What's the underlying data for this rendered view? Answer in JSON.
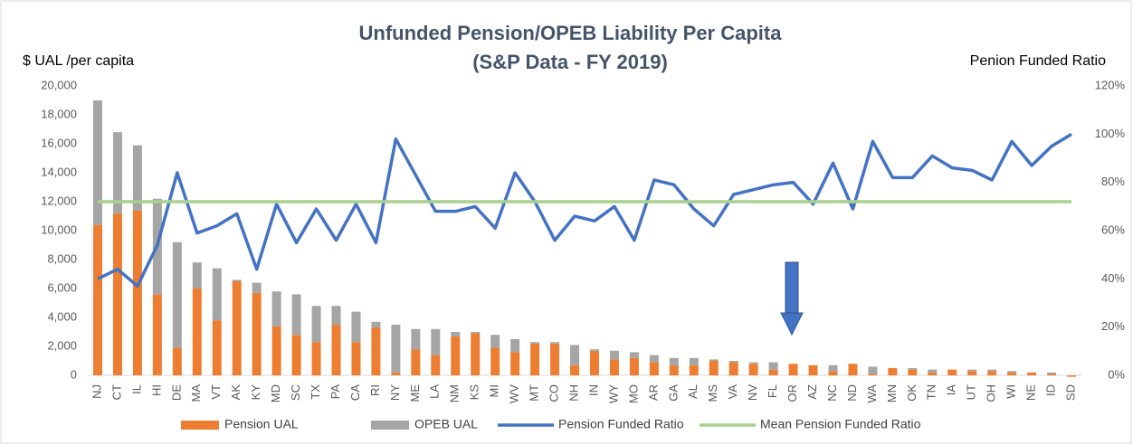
{
  "chart_data": {
    "type": "bar",
    "stacked": true,
    "title": [
      "Unfunded Pension/OPEB Liability Per Capita",
      "(S&P Data - FY 2019)"
    ],
    "y_label": "$ UAL /per capita",
    "y2_label": "Penion Funded Ratio",
    "categories": [
      "NJ",
      "CT",
      "IL",
      "HI",
      "DE",
      "MA",
      "VT",
      "AK",
      "KY",
      "MD",
      "SC",
      "TX",
      "PA",
      "CA",
      "RI",
      "NY",
      "ME",
      "LA",
      "NM",
      "KS",
      "MI",
      "WV",
      "MT",
      "CO",
      "NH",
      "IN",
      "WY",
      "MO",
      "AR",
      "GA",
      "AL",
      "MS",
      "VA",
      "NV",
      "FL",
      "OR",
      "AZ",
      "NC",
      "ND",
      "WA",
      "MN",
      "OK",
      "TN",
      "IA",
      "UT",
      "OH",
      "WI",
      "NE",
      "ID",
      "SD"
    ],
    "series": [
      {
        "name": "Pension UAL",
        "type": "bar",
        "color": "#ed7d31",
        "values": [
          10400,
          11200,
          11400,
          5600,
          1900,
          6000,
          3800,
          6500,
          5700,
          3400,
          2800,
          2300,
          3500,
          2300,
          3300,
          200,
          1800,
          1400,
          2700,
          2900,
          1900,
          1600,
          2200,
          2200,
          700,
          1700,
          1100,
          1200,
          900,
          700,
          700,
          1000,
          900,
          800,
          400,
          800,
          700,
          300,
          800,
          100,
          500,
          400,
          200,
          400,
          300,
          300,
          200,
          200,
          100,
          -100
        ]
      },
      {
        "name": "OPEB UAL",
        "type": "bar",
        "color": "#a5a5a5",
        "values": [
          8600,
          5600,
          4500,
          6600,
          7300,
          1800,
          3600,
          100,
          700,
          2400,
          2800,
          2500,
          1300,
          2100,
          400,
          3300,
          1400,
          1800,
          300,
          100,
          900,
          900,
          100,
          100,
          1400,
          100,
          600,
          400,
          500,
          500,
          500,
          100,
          100,
          100,
          500,
          0,
          0,
          400,
          0,
          500,
          0,
          100,
          200,
          0,
          100,
          100,
          100,
          0,
          100,
          0
        ]
      },
      {
        "name": "Pension Funded Ratio",
        "type": "line",
        "axis": "y2",
        "color": "#4472c4",
        "values": [
          40,
          44,
          37,
          54,
          84,
          59,
          62,
          67,
          44,
          71,
          55,
          69,
          56,
          71,
          55,
          98,
          83,
          68,
          68,
          70,
          61,
          84,
          72,
          56,
          66,
          64,
          70,
          56,
          81,
          79,
          69,
          62,
          75,
          77,
          79,
          80,
          71,
          88,
          69,
          97,
          82,
          82,
          91,
          86,
          85,
          81,
          97,
          87,
          95,
          100
        ]
      },
      {
        "name": "Mean Pension Funded Ratio",
        "type": "line",
        "axis": "y2",
        "color": "#a9d18e",
        "values": [
          72,
          72,
          72,
          72,
          72,
          72,
          72,
          72,
          72,
          72,
          72,
          72,
          72,
          72,
          72,
          72,
          72,
          72,
          72,
          72,
          72,
          72,
          72,
          72,
          72,
          72,
          72,
          72,
          72,
          72,
          72,
          72,
          72,
          72,
          72,
          72,
          72,
          72,
          72,
          72,
          72,
          72,
          72,
          72,
          72,
          72,
          72,
          72,
          72,
          72
        ]
      }
    ],
    "ylim": [
      0,
      20000
    ],
    "yticks": [
      0,
      {
        "value": 2000,
        "label": "2,000"
      },
      {
        "value": 4000,
        "label": "4,000"
      },
      {
        "value": 6000,
        "label": "6,000"
      },
      {
        "value": 8000,
        "label": "8,000"
      },
      {
        "value": 10000,
        "label": "10,000"
      },
      {
        "value": 12000,
        "label": "12,000"
      },
      {
        "value": 14000,
        "label": "14,000"
      },
      {
        "value": 16000,
        "label": "16,000"
      },
      {
        "value": 18000,
        "label": "18,000"
      },
      {
        "value": 20000,
        "label": "20,000"
      }
    ],
    "y2lim": [
      0,
      120
    ],
    "y2ticks": [
      {
        "value": 0,
        "label": "0%"
      },
      {
        "value": 20,
        "label": "20%"
      },
      {
        "value": 40,
        "label": "40%"
      },
      {
        "value": 60,
        "label": "60%"
      },
      {
        "value": 80,
        "label": "80%"
      },
      {
        "value": 100,
        "label": "100%"
      },
      {
        "value": 120,
        "label": "120%"
      }
    ],
    "grid": false,
    "legend": "bottom"
  }
}
